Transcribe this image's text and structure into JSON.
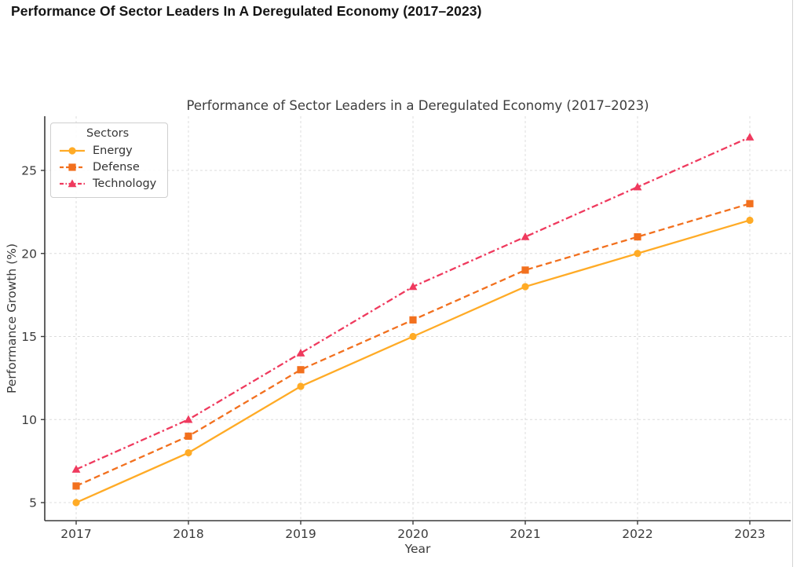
{
  "page": {
    "title": "Performance Of Sector Leaders In A Deregulated Economy (2017–2023)"
  },
  "chart_data": {
    "type": "line",
    "title": "Performance of Sector Leaders in a Deregulated Economy (2017–2023)",
    "xlabel": "Year",
    "ylabel": "Performance Growth (%)",
    "x": [
      2017,
      2018,
      2019,
      2020,
      2021,
      2022,
      2023
    ],
    "yticks": [
      5,
      10,
      15,
      20,
      25
    ],
    "ylim": [
      3.9,
      28.4
    ],
    "grid": true,
    "grid_color": "#dcdcdc",
    "axis_color": "#3b3b3b",
    "tick_text_color": "#3a3a3a",
    "legend": {
      "title": "Sectors",
      "position": "upper-left"
    },
    "series": [
      {
        "name": "Energy",
        "values": [
          5,
          8,
          12,
          15,
          18,
          20,
          22
        ],
        "color": "#FFAB26",
        "linestyle": "solid",
        "marker": "circle"
      },
      {
        "name": "Defense",
        "values": [
          6,
          9,
          13,
          16,
          19,
          21,
          23
        ],
        "color": "#F2701E",
        "linestyle": "dashed",
        "marker": "square"
      },
      {
        "name": "Technology",
        "values": [
          7,
          10,
          14,
          18,
          21,
          24,
          27
        ],
        "color": "#EF3A5E",
        "linestyle": "dashdot",
        "marker": "triangle"
      }
    ]
  }
}
